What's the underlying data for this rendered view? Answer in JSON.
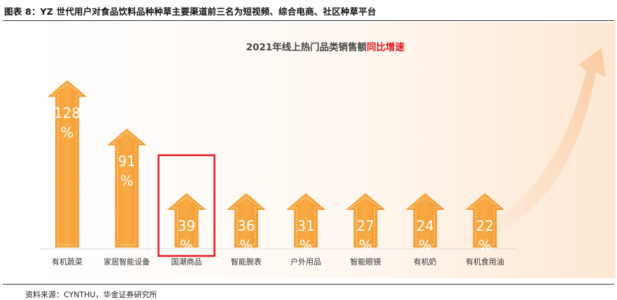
{
  "figure": {
    "title": "图表 8：YZ 世代用户对食品饮料品种种草主要渠道前三名为短视频、综合电商、社区种草平台",
    "source": "资料来源：CYNTHU，华金证券研究所"
  },
  "chart_data": {
    "type": "bar",
    "title_main": "2021年线上热门品类销售额",
    "title_highlight": "同比增速",
    "categories": [
      "有机蔬菜",
      "家居智能设备",
      "国潮商品",
      "智能腕表",
      "户外用品",
      "智能眼镜",
      "有机奶",
      "有机食用油"
    ],
    "values": [
      128,
      91,
      39,
      36,
      31,
      27,
      24,
      22
    ],
    "value_labels": [
      "128",
      "91",
      "39",
      "36",
      "31",
      "27",
      "24",
      "22"
    ],
    "unit_label": "%",
    "highlighted_category": "国潮商品",
    "ylim": [
      0,
      140
    ],
    "colors": {
      "bar": "#f7a33a",
      "bar_light": "#fbc36e",
      "highlight_box": "#e0161c",
      "title_highlight": "#e0161c",
      "title": "#444444"
    }
  }
}
